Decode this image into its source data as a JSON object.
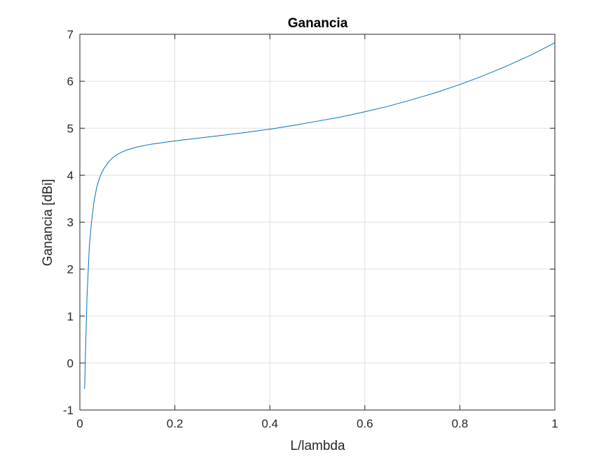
{
  "chart_data": {
    "type": "line",
    "title": "Ganancia",
    "xlabel": "L/lambda",
    "ylabel": "Ganancia [dBi]",
    "xlim": [
      0,
      1
    ],
    "ylim": [
      -1,
      7
    ],
    "xticks": [
      "0",
      "0.2",
      "0.4",
      "0.6",
      "0.8",
      "1"
    ],
    "yticks": [
      "-1",
      "0",
      "1",
      "2",
      "3",
      "4",
      "5",
      "6",
      "7"
    ],
    "grid": true,
    "colors": {
      "line": "#0072BD",
      "grid": "#dfdfdf",
      "axis": "#262626"
    },
    "series": [
      {
        "x": [
          0.01,
          0.012,
          0.015,
          0.02,
          0.025,
          0.03,
          0.035,
          0.04,
          0.045,
          0.05,
          0.06,
          0.07,
          0.08,
          0.09,
          0.1,
          0.12,
          0.15,
          0.2,
          0.25,
          0.3,
          0.35,
          0.4,
          0.45,
          0.5,
          0.55,
          0.6,
          0.65,
          0.7,
          0.75,
          0.8,
          0.85,
          0.9,
          0.95,
          1.0
        ],
        "y": [
          -0.55,
          0.3,
          1.4,
          2.5,
          3.05,
          3.45,
          3.72,
          3.9,
          4.03,
          4.13,
          4.28,
          4.38,
          4.45,
          4.5,
          4.54,
          4.6,
          4.66,
          4.73,
          4.79,
          4.85,
          4.91,
          4.98,
          5.06,
          5.15,
          5.24,
          5.35,
          5.47,
          5.61,
          5.76,
          5.93,
          6.12,
          6.33,
          6.56,
          6.82
        ]
      }
    ]
  }
}
